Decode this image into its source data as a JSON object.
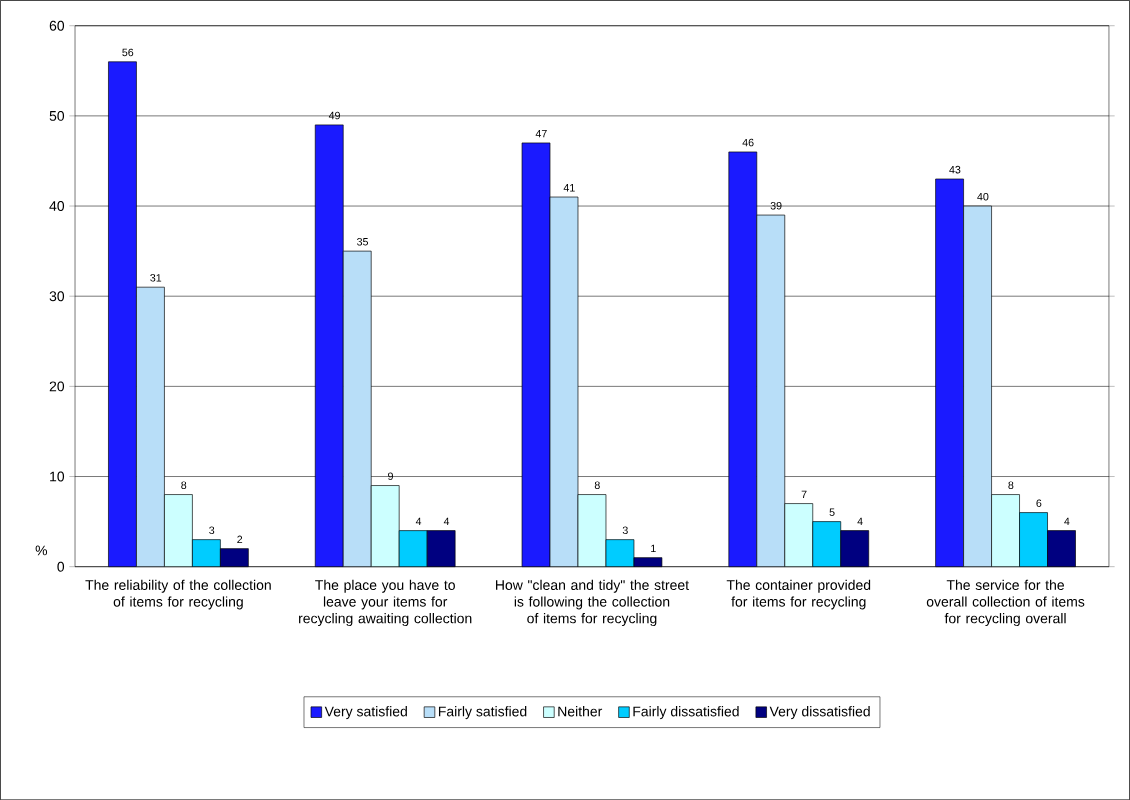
{
  "chart_data": {
    "type": "bar",
    "ylabel": "%",
    "categories": [
      "The reliability of the collection of items for recycling",
      "The place you have to leave your items for recycling awaiting collection",
      "How \"clean and tidy\" the street is following the collection of items for recycling",
      "The container provided for items for recycling",
      "The service for the overall collection of items for recycling overall"
    ],
    "series": [
      {
        "name": "Very satisfied",
        "color": "#1a1aff",
        "values": [
          56,
          49,
          47,
          46,
          43
        ]
      },
      {
        "name": "Fairly satisfied",
        "color": "#b8def8",
        "values": [
          31,
          35,
          41,
          39,
          40
        ]
      },
      {
        "name": "Neither",
        "color": "#ccffff",
        "values": [
          8,
          9,
          8,
          7,
          8
        ]
      },
      {
        "name": "Fairly dissatisfied",
        "color": "#00ccff",
        "values": [
          3,
          4,
          3,
          5,
          6
        ]
      },
      {
        "name": "Very dissatisfied",
        "color": "#000080",
        "values": [
          2,
          4,
          1,
          4,
          4
        ]
      }
    ],
    "ylim": [
      0,
      60
    ],
    "yticks": [
      0,
      10,
      20,
      30,
      40,
      50,
      60
    ],
    "grid": "y",
    "legend": "bottom",
    "data_labels": true
  }
}
